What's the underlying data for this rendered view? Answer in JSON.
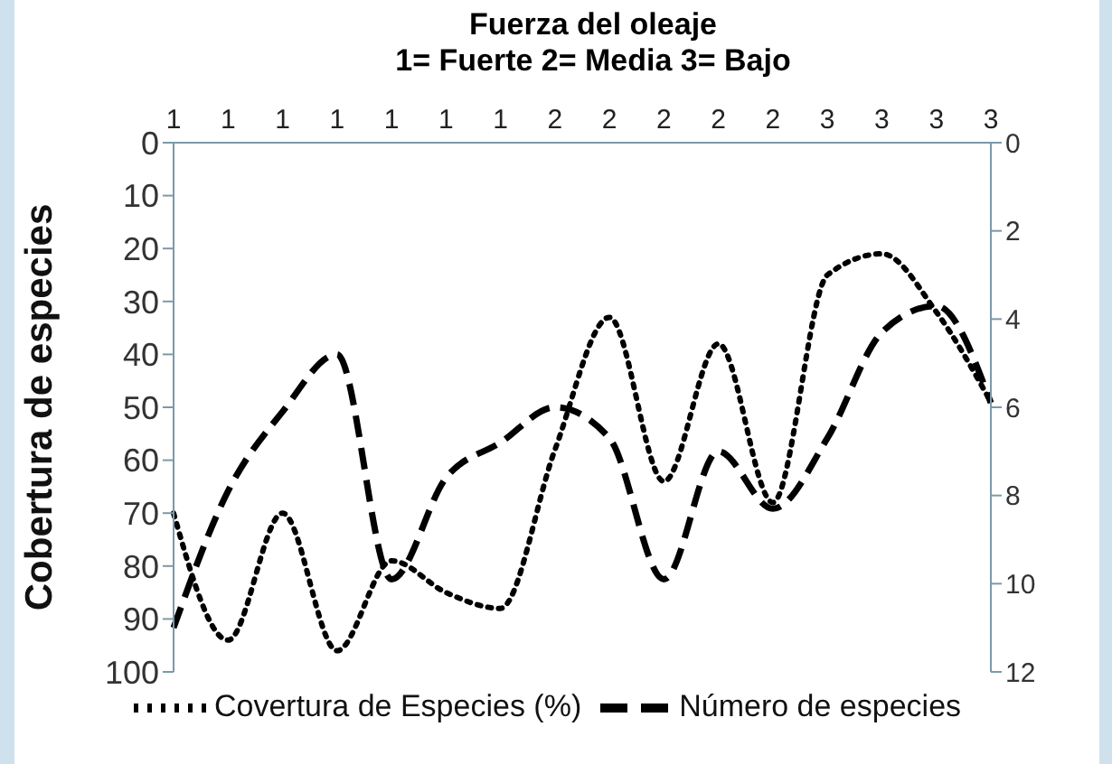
{
  "chart_data": {
    "type": "line",
    "title": "Fuerza del oleaje",
    "subtitle": "1= Fuerte  2= Media  3= Bajo",
    "ylabel": "Cobertura de especies",
    "categories": [
      "1",
      "1",
      "1",
      "1",
      "1",
      "1",
      "1",
      "2",
      "2",
      "2",
      "2",
      "2",
      "3",
      "3",
      "3",
      "3"
    ],
    "series": [
      {
        "name": "Covertura de Especies (%)",
        "color": "#000000",
        "line_style": "dotted",
        "values": [
          70,
          94,
          70,
          96,
          79,
          85,
          88,
          58,
          33,
          64,
          38,
          68,
          25,
          21,
          32,
          49
        ]
      },
      {
        "name": "Número de especies",
        "color": "#000000",
        "line_style": "dashed",
        "axis": "y2",
        "values": [
          11.0,
          7.9,
          6.1,
          4.8,
          9.9,
          7.6,
          6.8,
          6.0,
          6.7,
          9.9,
          7.0,
          8.3,
          6.7,
          4.3,
          3.7,
          5.9
        ]
      }
    ],
    "ylim": [
      100,
      0
    ],
    "yticks": [
      0,
      10,
      20,
      30,
      40,
      50,
      60,
      70,
      80,
      90,
      100
    ],
    "y2lim": [
      12,
      0
    ],
    "y2ticks": [
      0,
      2,
      4,
      6,
      8,
      10,
      12
    ],
    "legend": "bottom",
    "marker": "none"
  }
}
